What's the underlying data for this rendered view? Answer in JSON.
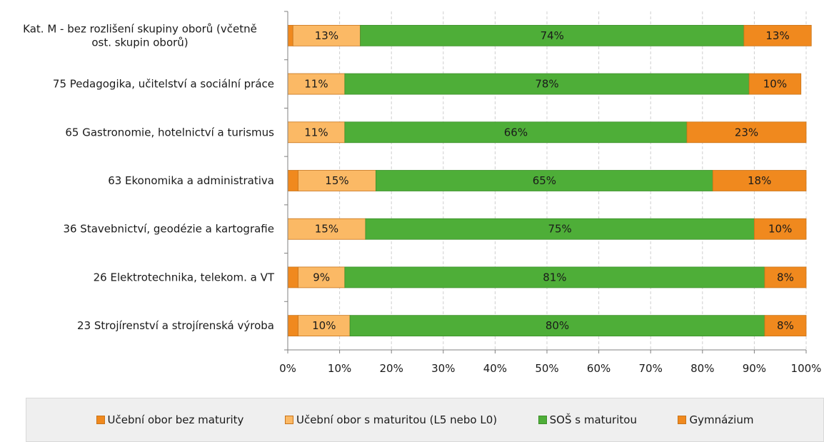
{
  "chart_data": {
    "type": "bar",
    "orientation": "horizontal",
    "stacked": "percent",
    "categories": [
      [
        "Kat. M - bez rozlišení skupiny oborů (včetně",
        "ost. skupin oborů)"
      ],
      [
        "75 Pedagogika, učitelství a sociální práce"
      ],
      [
        "65 Gastronomie, hotelnictví a turismus"
      ],
      [
        "63 Ekonomika a administrativa"
      ],
      [
        "36 Stavebnictví, geodézie a kartografie"
      ],
      [
        "26 Elektrotechnika, telekom. a VT"
      ],
      [
        "23 Strojírenství a strojírenská výroba"
      ]
    ],
    "series": [
      {
        "name": "Učební obor bez maturity",
        "color": "#f0891e",
        "values": [
          1,
          0,
          0,
          2,
          0,
          2,
          2
        ],
        "labels": [
          "",
          "",
          "",
          "",
          "",
          "",
          ""
        ]
      },
      {
        "name": "Učební obor s maturitou (L5 nebo L0)",
        "color": "#fbb965",
        "values": [
          13,
          11,
          11,
          15,
          15,
          9,
          10
        ],
        "labels": [
          "13%",
          "11%",
          "11%",
          "15%",
          "15%",
          "9%",
          "10%"
        ]
      },
      {
        "name": "SOŠ s maturitou",
        "color": "#4eae38",
        "values": [
          74,
          78,
          66,
          65,
          75,
          81,
          80
        ],
        "labels": [
          "74%",
          "78%",
          "66%",
          "65%",
          "75%",
          "81%",
          "80%"
        ]
      },
      {
        "name": "Gymnázium",
        "color": "#f0891e",
        "values": [
          13,
          10,
          23,
          18,
          10,
          8,
          8
        ],
        "labels": [
          "13%",
          "10%",
          "23%",
          "18%",
          "10%",
          "8%",
          "8%"
        ]
      }
    ],
    "x_ticks": [
      "0%",
      "10%",
      "20%",
      "30%",
      "40%",
      "50%",
      "60%",
      "70%",
      "80%",
      "90%",
      "100%"
    ],
    "xlim": [
      0,
      100
    ],
    "grid": "vertical dashed",
    "legend_position": "bottom"
  }
}
